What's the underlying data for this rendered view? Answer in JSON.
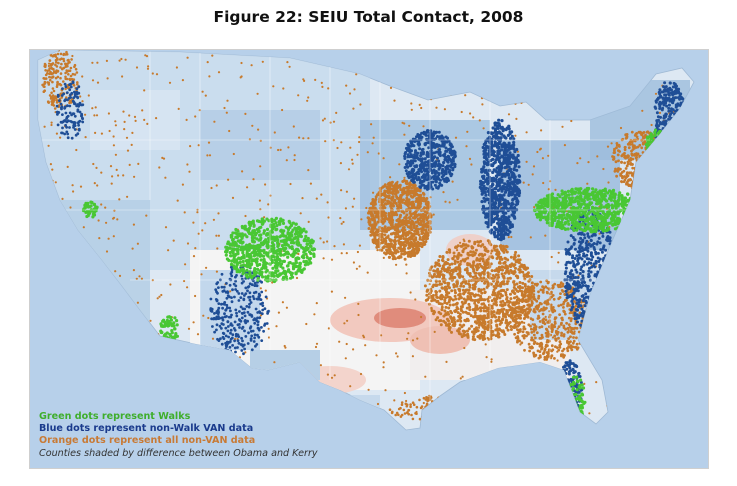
{
  "title": "Figure 22: SEIU Total Contact, 2008",
  "legend": {
    "green_label": "Green dots represent Walks",
    "blue_label": "Blue dots represent non-Walk VAN data",
    "orange_label": "Orange dots represent all non-VAN data",
    "note": "Counties shaded by difference between Obama and Kerry"
  },
  "colors": {
    "ocean": "#b7d0ea",
    "land_pale": "#dde8f3",
    "land_light_blue": "#b6cfe6",
    "land_mid_blue": "#8fb4d8",
    "land_white": "#f7f7f7",
    "land_light_red": "#f2c9bf",
    "land_red": "#e08c7c",
    "green": "#49c734",
    "blue": "#1f4e96",
    "orange": "#c77a2c",
    "legend_green": "#3fae2c",
    "legend_blue": "#1a3a8c",
    "legend_orange": "#c87a35"
  }
}
